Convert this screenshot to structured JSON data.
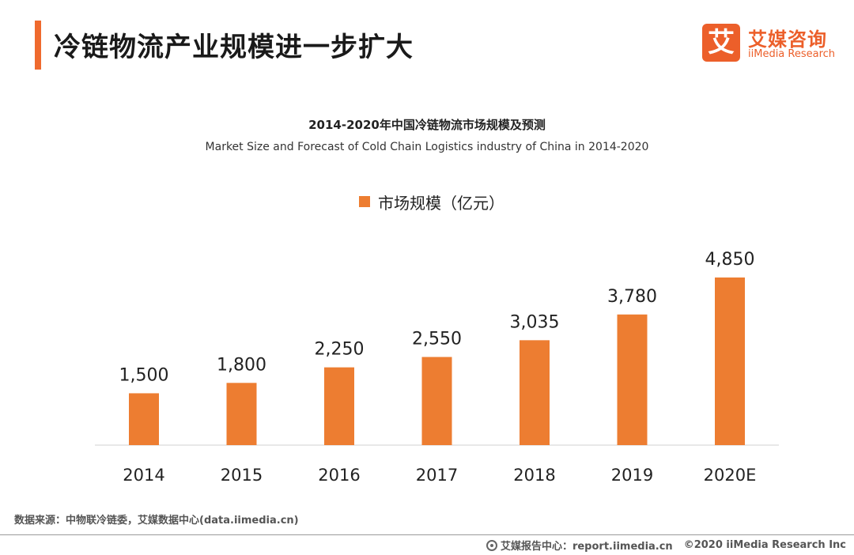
{
  "header": {
    "title": "冷链物流产业规模进一步扩大"
  },
  "logo": {
    "mark": "艾",
    "name_cn": "艾媒咨询",
    "name_en": "iiMedia Research"
  },
  "chart_data": {
    "type": "bar",
    "title": "2014-2020年中国冷链物流市场规模及预测",
    "subtitle": "Market Size and Forecast of Cold Chain Logistics industry of China in 2014-2020",
    "categories": [
      "2014",
      "2015",
      "2016",
      "2017",
      "2018",
      "2019",
      "2020E"
    ],
    "series": [
      {
        "name": "市场规模（亿元）",
        "values": [
          1500,
          1800,
          2250,
          2550,
          3035,
          3780,
          4850
        ]
      }
    ],
    "value_labels": [
      "1,500",
      "1,800",
      "2,250",
      "2,550",
      "3,035",
      "3,780",
      "4,850"
    ],
    "ylim": [
      0,
      4850
    ],
    "xlabel": "",
    "ylabel": "",
    "legend_position": "top-center",
    "grid": false,
    "color": "#ed7d31"
  },
  "footer": {
    "source": "数据来源：中物联冷链委，艾媒数据中心(data.iimedia.cn)",
    "report_center": "艾媒报告中心：report.iimedia.cn",
    "copyright": "©2020  iiMedia Research  Inc"
  }
}
